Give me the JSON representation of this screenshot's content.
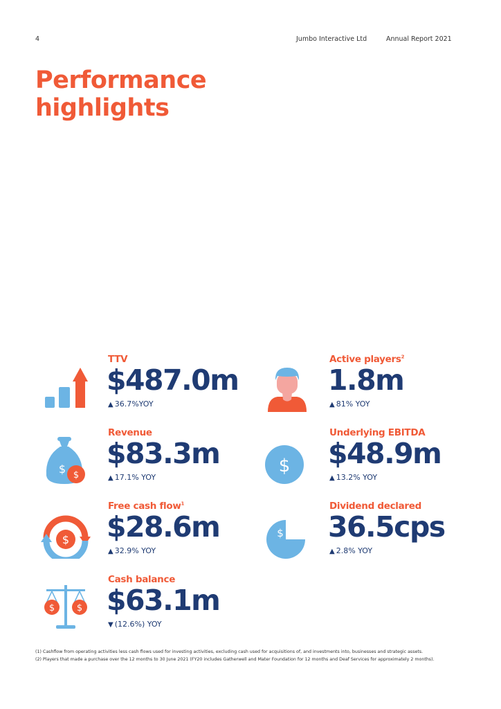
{
  "header": {
    "page_number": "4",
    "company": "Jumbo Interactive Ltd",
    "report": "Annual Report 2021"
  },
  "title": {
    "line1": "Performance",
    "line2": "highlights"
  },
  "colors": {
    "accent": "#f05a37",
    "navy": "#1f3b73",
    "light_blue": "#6cb4e4"
  },
  "metrics": {
    "ttv": {
      "label": "TTV",
      "value": "$487.0m",
      "change": "36.7%YOY",
      "direction": "up",
      "icon": "bar-chart-arrow-icon"
    },
    "active_players": {
      "label": "Active players",
      "footnote": "2",
      "value": "1.8m",
      "change": "81% YOY",
      "direction": "up",
      "icon": "person-icon"
    },
    "revenue": {
      "label": "Revenue",
      "value": "$83.3m",
      "change": "17.1% YOY",
      "direction": "up",
      "icon": "money-bag-icon"
    },
    "ebitda": {
      "label": "Underlying EBITDA",
      "value": "$48.9m",
      "change": "13.2% YOY",
      "direction": "up",
      "icon": "dollar-coin-icon"
    },
    "free_cash_flow": {
      "label": "Free cash flow",
      "footnote": "1",
      "value": "$28.6m",
      "change": "32.9% YOY",
      "direction": "up",
      "icon": "cash-cycle-icon"
    },
    "dividend": {
      "label": "Dividend declared",
      "value": "36.5cps",
      "change": "2.8% YOY",
      "direction": "up",
      "icon": "pie-dollar-icon"
    },
    "cash_balance": {
      "label": "Cash balance",
      "value": "$63.1m",
      "change": "(12.6%) YOY",
      "direction": "down",
      "icon": "balance-scale-icon"
    }
  },
  "symbols": {
    "up": "▲",
    "down": "▼",
    "dollar": "$"
  },
  "footnotes": [
    "(1) Cashflow from operating activities less cash flows used for investing activities, excluding cash used for acquisitions of, and investments into, businesses and strategic assets.",
    "(2) Players that made a purchase over the 12 months to 30 June 2021 (FY20 includes Gatherwell and Mater Foundation for 12 months and Deaf Services for approximately 2 months)."
  ]
}
